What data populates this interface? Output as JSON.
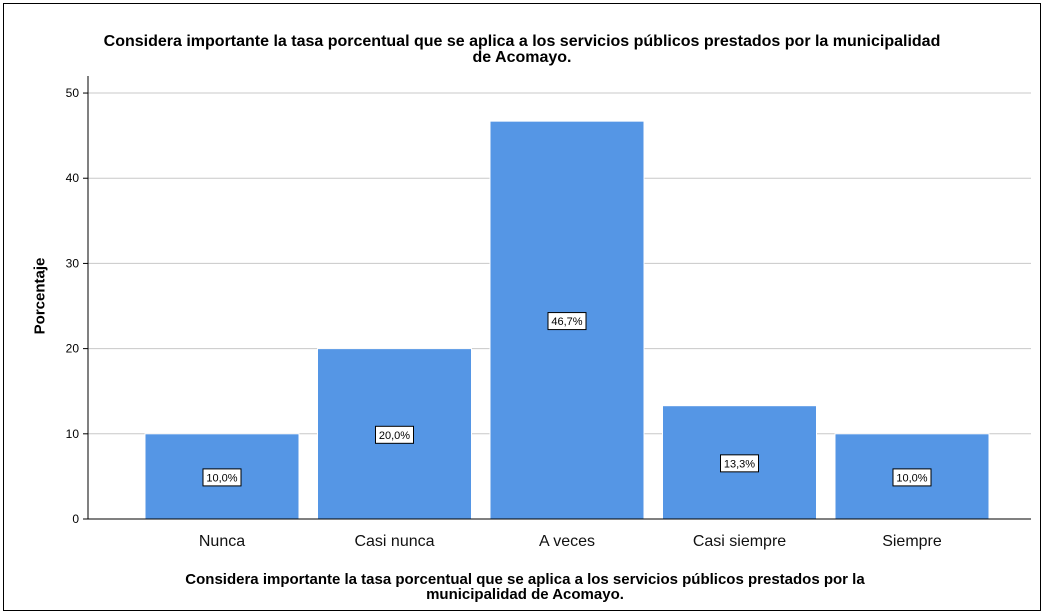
{
  "chart_data": {
    "type": "bar",
    "title": "Considera importante la tasa porcentual que se aplica a los servicios públicos prestados por la municipalidad\nde Acomayo.",
    "xlabel": "Considera importante la tasa porcentual que se aplica a los servicios públicos prestados por la\nmunicipalidad de Acomayo.",
    "ylabel": "Porcentaje",
    "categories": [
      "Nunca",
      "Casi nunca",
      "A veces",
      "Casi siempre",
      "Siempre"
    ],
    "values": [
      10.0,
      20.0,
      46.7,
      13.3,
      10.0
    ],
    "data_labels": [
      "10,0%",
      "20,0%",
      "46,7%",
      "13,3%",
      "10,0%"
    ],
    "ylim": [
      0,
      52
    ],
    "yticks": [
      0,
      10,
      20,
      30,
      40,
      50
    ],
    "grid": true,
    "bar_color": "#5596e5",
    "grid_color": "#c8c8c8"
  }
}
